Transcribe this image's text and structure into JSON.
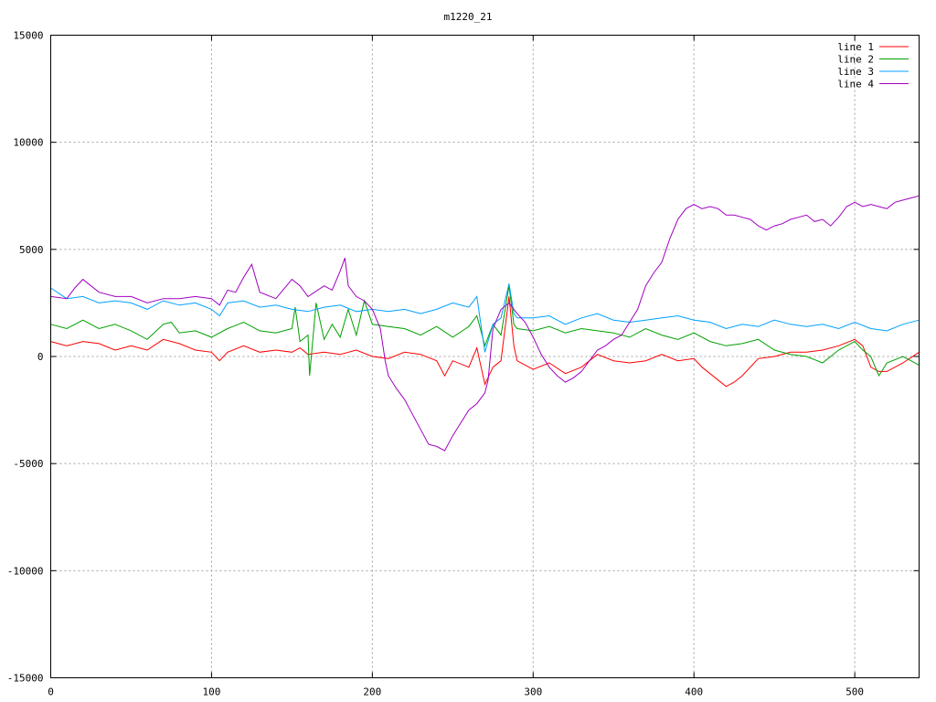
{
  "chart_data": {
    "type": "line",
    "title": "m1220_21",
    "xlabel": "",
    "ylabel": "",
    "xlim": [
      0,
      540
    ],
    "ylim": [
      -15000,
      15000
    ],
    "x_ticks": [
      0,
      100,
      200,
      300,
      400,
      500
    ],
    "y_ticks": [
      -15000,
      -10000,
      -5000,
      0,
      5000,
      10000,
      15000
    ],
    "grid": true,
    "legend_position": "top-right",
    "series": [
      {
        "name": "line 1",
        "color": "#ff0000",
        "points": [
          [
            0,
            700
          ],
          [
            10,
            500
          ],
          [
            20,
            700
          ],
          [
            30,
            600
          ],
          [
            40,
            300
          ],
          [
            50,
            500
          ],
          [
            60,
            300
          ],
          [
            70,
            800
          ],
          [
            80,
            600
          ],
          [
            90,
            300
          ],
          [
            100,
            200
          ],
          [
            105,
            -200
          ],
          [
            110,
            200
          ],
          [
            120,
            500
          ],
          [
            130,
            200
          ],
          [
            140,
            300
          ],
          [
            150,
            200
          ],
          [
            155,
            400
          ],
          [
            160,
            100
          ],
          [
            170,
            200
          ],
          [
            180,
            100
          ],
          [
            190,
            300
          ],
          [
            200,
            0
          ],
          [
            210,
            -100
          ],
          [
            220,
            200
          ],
          [
            230,
            100
          ],
          [
            240,
            -200
          ],
          [
            245,
            -900
          ],
          [
            250,
            -200
          ],
          [
            260,
            -500
          ],
          [
            265,
            400
          ],
          [
            270,
            -1300
          ],
          [
            275,
            -500
          ],
          [
            280,
            -200
          ],
          [
            285,
            2800
          ],
          [
            288,
            500
          ],
          [
            290,
            -200
          ],
          [
            300,
            -600
          ],
          [
            310,
            -300
          ],
          [
            320,
            -800
          ],
          [
            330,
            -500
          ],
          [
            340,
            100
          ],
          [
            350,
            -200
          ],
          [
            360,
            -300
          ],
          [
            370,
            -200
          ],
          [
            380,
            100
          ],
          [
            390,
            -200
          ],
          [
            400,
            -100
          ],
          [
            405,
            -500
          ],
          [
            410,
            -800
          ],
          [
            415,
            -1100
          ],
          [
            420,
            -1400
          ],
          [
            425,
            -1200
          ],
          [
            430,
            -900
          ],
          [
            440,
            -100
          ],
          [
            450,
            0
          ],
          [
            460,
            200
          ],
          [
            470,
            200
          ],
          [
            480,
            300
          ],
          [
            490,
            500
          ],
          [
            500,
            800
          ],
          [
            505,
            500
          ],
          [
            510,
            -500
          ],
          [
            515,
            -700
          ],
          [
            520,
            -700
          ],
          [
            530,
            -300
          ],
          [
            540,
            200
          ]
        ]
      },
      {
        "name": "line 2",
        "color": "#00a000",
        "points": [
          [
            0,
            1500
          ],
          [
            10,
            1300
          ],
          [
            20,
            1700
          ],
          [
            30,
            1300
          ],
          [
            40,
            1500
          ],
          [
            50,
            1200
          ],
          [
            60,
            800
          ],
          [
            70,
            1500
          ],
          [
            75,
            1600
          ],
          [
            80,
            1100
          ],
          [
            90,
            1200
          ],
          [
            100,
            900
          ],
          [
            110,
            1300
          ],
          [
            120,
            1600
          ],
          [
            130,
            1200
          ],
          [
            140,
            1100
          ],
          [
            150,
            1300
          ],
          [
            152,
            2300
          ],
          [
            155,
            700
          ],
          [
            160,
            1000
          ],
          [
            161,
            -900
          ],
          [
            165,
            2500
          ],
          [
            170,
            800
          ],
          [
            175,
            1500
          ],
          [
            180,
            900
          ],
          [
            185,
            2200
          ],
          [
            190,
            1000
          ],
          [
            195,
            2600
          ],
          [
            200,
            1500
          ],
          [
            210,
            1400
          ],
          [
            220,
            1300
          ],
          [
            230,
            1000
          ],
          [
            240,
            1400
          ],
          [
            250,
            900
          ],
          [
            260,
            1400
          ],
          [
            265,
            1900
          ],
          [
            270,
            500
          ],
          [
            275,
            1500
          ],
          [
            280,
            1000
          ],
          [
            285,
            3300
          ],
          [
            288,
            1500
          ],
          [
            290,
            1300
          ],
          [
            300,
            1200
          ],
          [
            310,
            1400
          ],
          [
            320,
            1100
          ],
          [
            330,
            1300
          ],
          [
            340,
            1200
          ],
          [
            350,
            1100
          ],
          [
            360,
            900
          ],
          [
            370,
            1300
          ],
          [
            380,
            1000
          ],
          [
            390,
            800
          ],
          [
            400,
            1100
          ],
          [
            410,
            700
          ],
          [
            420,
            500
          ],
          [
            430,
            600
          ],
          [
            440,
            800
          ],
          [
            450,
            300
          ],
          [
            460,
            100
          ],
          [
            470,
            0
          ],
          [
            480,
            -300
          ],
          [
            490,
            300
          ],
          [
            500,
            700
          ],
          [
            505,
            300
          ],
          [
            510,
            0
          ],
          [
            515,
            -900
          ],
          [
            520,
            -300
          ],
          [
            530,
            0
          ],
          [
            540,
            -400
          ]
        ]
      },
      {
        "name": "line 3",
        "color": "#00a0ff",
        "points": [
          [
            0,
            3200
          ],
          [
            10,
            2700
          ],
          [
            20,
            2800
          ],
          [
            30,
            2500
          ],
          [
            40,
            2600
          ],
          [
            50,
            2500
          ],
          [
            60,
            2200
          ],
          [
            70,
            2600
          ],
          [
            80,
            2400
          ],
          [
            90,
            2500
          ],
          [
            100,
            2200
          ],
          [
            105,
            1900
          ],
          [
            110,
            2500
          ],
          [
            120,
            2600
          ],
          [
            130,
            2300
          ],
          [
            140,
            2400
          ],
          [
            150,
            2200
          ],
          [
            160,
            2100
          ],
          [
            170,
            2300
          ],
          [
            180,
            2400
          ],
          [
            190,
            2100
          ],
          [
            200,
            2200
          ],
          [
            210,
            2100
          ],
          [
            220,
            2200
          ],
          [
            230,
            2000
          ],
          [
            240,
            2200
          ],
          [
            250,
            2500
          ],
          [
            260,
            2300
          ],
          [
            265,
            2800
          ],
          [
            270,
            200
          ],
          [
            275,
            1500
          ],
          [
            280,
            1800
          ],
          [
            285,
            3400
          ],
          [
            288,
            2000
          ],
          [
            290,
            1800
          ],
          [
            300,
            1800
          ],
          [
            310,
            1900
          ],
          [
            320,
            1500
          ],
          [
            330,
            1800
          ],
          [
            340,
            2000
          ],
          [
            350,
            1700
          ],
          [
            360,
            1600
          ],
          [
            370,
            1700
          ],
          [
            380,
            1800
          ],
          [
            390,
            1900
          ],
          [
            400,
            1700
          ],
          [
            410,
            1600
          ],
          [
            420,
            1300
          ],
          [
            430,
            1500
          ],
          [
            440,
            1400
          ],
          [
            450,
            1700
          ],
          [
            460,
            1500
          ],
          [
            470,
            1400
          ],
          [
            480,
            1500
          ],
          [
            490,
            1300
          ],
          [
            500,
            1600
          ],
          [
            510,
            1300
          ],
          [
            520,
            1200
          ],
          [
            530,
            1500
          ],
          [
            540,
            1700
          ]
        ]
      },
      {
        "name": "line 4",
        "color": "#a000c0",
        "points": [
          [
            0,
            2800
          ],
          [
            10,
            2700
          ],
          [
            15,
            3200
          ],
          [
            20,
            3600
          ],
          [
            25,
            3300
          ],
          [
            30,
            3000
          ],
          [
            40,
            2800
          ],
          [
            50,
            2800
          ],
          [
            60,
            2500
          ],
          [
            70,
            2700
          ],
          [
            80,
            2700
          ],
          [
            90,
            2800
          ],
          [
            100,
            2700
          ],
          [
            105,
            2400
          ],
          [
            110,
            3100
          ],
          [
            115,
            3000
          ],
          [
            120,
            3700
          ],
          [
            125,
            4300
          ],
          [
            130,
            3000
          ],
          [
            140,
            2700
          ],
          [
            150,
            3600
          ],
          [
            155,
            3300
          ],
          [
            160,
            2800
          ],
          [
            170,
            3300
          ],
          [
            175,
            3100
          ],
          [
            180,
            4000
          ],
          [
            183,
            4600
          ],
          [
            185,
            3300
          ],
          [
            190,
            2800
          ],
          [
            195,
            2600
          ],
          [
            200,
            2200
          ],
          [
            205,
            1300
          ],
          [
            208,
            -200
          ],
          [
            210,
            -900
          ],
          [
            215,
            -1500
          ],
          [
            220,
            -2000
          ],
          [
            225,
            -2700
          ],
          [
            230,
            -3400
          ],
          [
            235,
            -4100
          ],
          [
            240,
            -4200
          ],
          [
            245,
            -4400
          ],
          [
            250,
            -3700
          ],
          [
            255,
            -3100
          ],
          [
            260,
            -2500
          ],
          [
            265,
            -2200
          ],
          [
            270,
            -1700
          ],
          [
            272,
            -1100
          ],
          [
            275,
            1300
          ],
          [
            280,
            2200
          ],
          [
            285,
            2500
          ],
          [
            290,
            2000
          ],
          [
            295,
            1600
          ],
          [
            300,
            900
          ],
          [
            305,
            100
          ],
          [
            310,
            -500
          ],
          [
            315,
            -900
          ],
          [
            320,
            -1200
          ],
          [
            325,
            -1000
          ],
          [
            330,
            -700
          ],
          [
            335,
            -200
          ],
          [
            340,
            300
          ],
          [
            345,
            500
          ],
          [
            350,
            800
          ],
          [
            355,
            1000
          ],
          [
            360,
            1600
          ],
          [
            365,
            2200
          ],
          [
            370,
            3300
          ],
          [
            375,
            3900
          ],
          [
            380,
            4400
          ],
          [
            385,
            5500
          ],
          [
            390,
            6400
          ],
          [
            395,
            6900
          ],
          [
            400,
            7100
          ],
          [
            405,
            6900
          ],
          [
            410,
            7000
          ],
          [
            415,
            6900
          ],
          [
            420,
            6600
          ],
          [
            425,
            6600
          ],
          [
            430,
            6500
          ],
          [
            435,
            6400
          ],
          [
            440,
            6100
          ],
          [
            445,
            5900
          ],
          [
            450,
            6100
          ],
          [
            455,
            6200
          ],
          [
            460,
            6400
          ],
          [
            465,
            6500
          ],
          [
            470,
            6600
          ],
          [
            475,
            6300
          ],
          [
            480,
            6400
          ],
          [
            485,
            6100
          ],
          [
            490,
            6500
          ],
          [
            495,
            7000
          ],
          [
            500,
            7200
          ],
          [
            505,
            7000
          ],
          [
            510,
            7100
          ],
          [
            515,
            7000
          ],
          [
            520,
            6900
          ],
          [
            525,
            7200
          ],
          [
            530,
            7300
          ],
          [
            535,
            7400
          ],
          [
            540,
            7500
          ]
        ]
      }
    ]
  }
}
